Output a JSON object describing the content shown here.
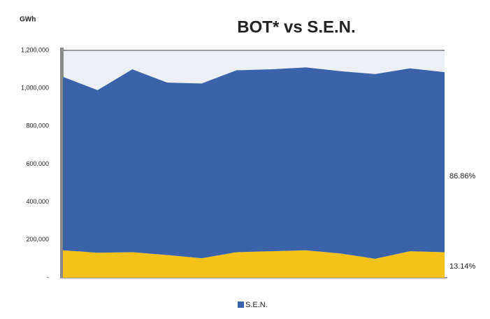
{
  "chart_data": {
    "type": "stacked_area",
    "title": "BOT* vs S.E.N.",
    "y_label": "GWh",
    "categories": [
      null,
      null,
      null,
      null,
      null,
      null,
      null,
      null,
      null,
      null,
      null,
      null
    ],
    "series": [
      {
        "color": "#f5c21b",
        "values": [
          145000,
          132000,
          135000,
          120000,
          103000,
          135000,
          140000,
          145000,
          128000,
          100000,
          140000,
          135000
        ]
      },
      {
        "name": "S.E.N.",
        "color": "#3a63aa",
        "values": [
          915000,
          858000,
          965000,
          910000,
          922000,
          960000,
          960000,
          965000,
          962000,
          975000,
          965000,
          950000
        ]
      }
    ],
    "ylim": [
      0,
      1200000
    ],
    "yticks": [
      {
        "value": 0,
        "label": "-"
      },
      {
        "value": 200000,
        "label": "200,000"
      },
      {
        "value": 400000,
        "label": "400,000"
      },
      {
        "value": 600000,
        "label": "600,000"
      },
      {
        "value": 800000,
        "label": "800,000"
      },
      {
        "value": 1000000,
        "label": "1,000,000"
      },
      {
        "value": 1200000,
        "label": "1,200,000"
      }
    ],
    "annotations": [
      {
        "text": "86.86%"
      },
      {
        "text": "13.14%"
      }
    ],
    "legend": "bottom"
  }
}
